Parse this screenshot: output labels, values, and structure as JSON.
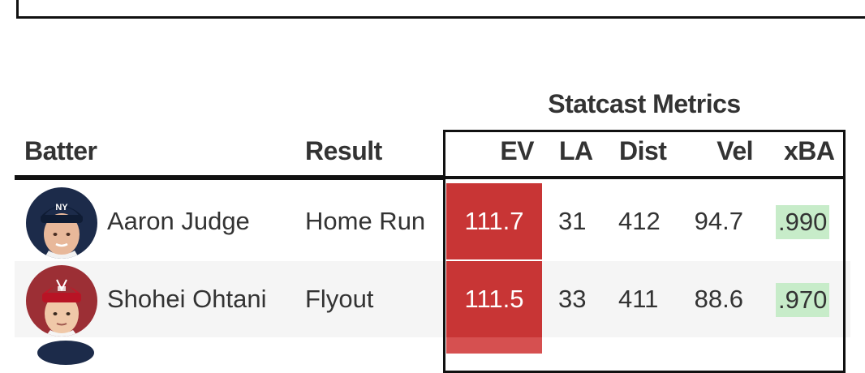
{
  "table": {
    "group_title": "Statcast Metrics",
    "headers": {
      "batter": "Batter",
      "result": "Result",
      "ev": "EV",
      "la": "LA",
      "dist": "Dist",
      "vel": "Vel",
      "xba": "xBA"
    },
    "rows": [
      {
        "batter": "Aaron Judge",
        "result": "Home Run",
        "ev": "111.7",
        "la": "31",
        "dist": "412",
        "vel": "94.7",
        "xba": ".990",
        "avatar_icon": "player-headshot-yankees-icon"
      },
      {
        "batter": "Shohei Ohtani",
        "result": "Flyout",
        "ev": "111.5",
        "la": "33",
        "dist": "411",
        "vel": "88.6",
        "xba": ".970",
        "avatar_icon": "player-headshot-angels-icon"
      }
    ],
    "colors": {
      "ev_highlight": "#c83535",
      "xba_highlight": "#c7ecc9",
      "alt_row": "#f5f5f5",
      "rule": "#111111"
    }
  }
}
